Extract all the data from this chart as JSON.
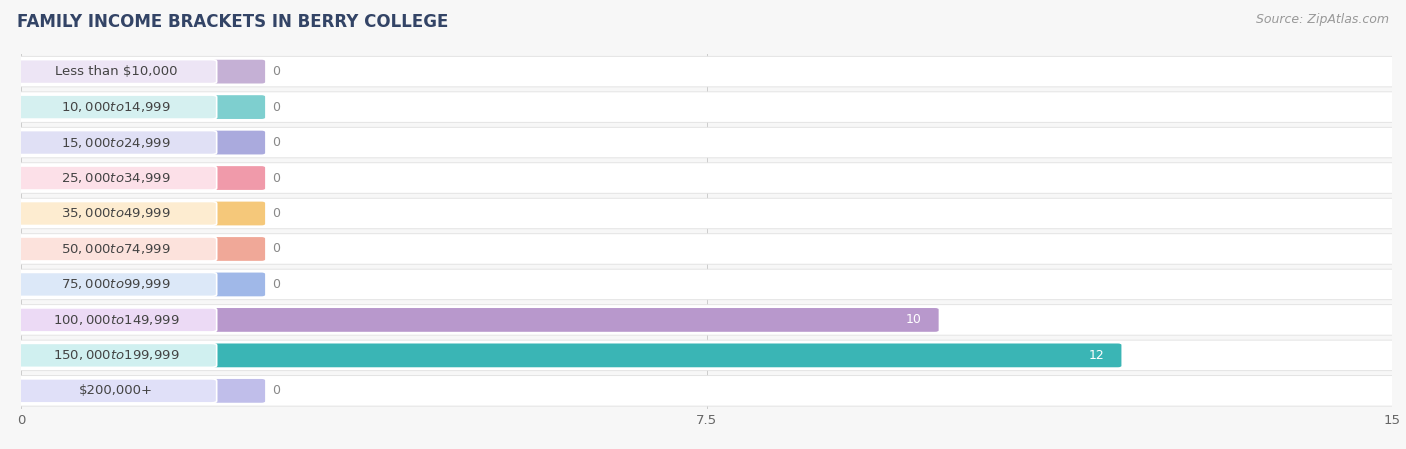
{
  "title": "FAMILY INCOME BRACKETS IN BERRY COLLEGE",
  "source": "Source: ZipAtlas.com",
  "categories": [
    "Less than $10,000",
    "$10,000 to $14,999",
    "$15,000 to $24,999",
    "$25,000 to $34,999",
    "$35,000 to $49,999",
    "$50,000 to $74,999",
    "$75,000 to $99,999",
    "$100,000 to $149,999",
    "$150,000 to $199,999",
    "$200,000+"
  ],
  "values": [
    0,
    0,
    0,
    0,
    0,
    0,
    0,
    10,
    12,
    0
  ],
  "bar_colors": [
    "#c5b0d5",
    "#7ecfcf",
    "#aaaadd",
    "#f09aaa",
    "#f5c87a",
    "#f0a898",
    "#a0b8e8",
    "#b898cc",
    "#3ab5b5",
    "#c0beea"
  ],
  "label_bg_colors": [
    "#ede5f5",
    "#d5f0f0",
    "#e0e0f5",
    "#fce0e8",
    "#fdecd0",
    "#fce2dc",
    "#dce8f8",
    "#ecdaf5",
    "#d0f0f0",
    "#e0e0f8"
  ],
  "row_bg_color": "#ffffff",
  "row_border_color": "#e0e0e0",
  "grid_color": "#cccccc",
  "xlim": [
    0,
    15
  ],
  "xticks": [
    0,
    7.5,
    15
  ],
  "bg_color": "#f7f7f7",
  "title_color": "#334466",
  "title_fontsize": 12,
  "source_fontsize": 9,
  "label_fontsize": 9.5,
  "value_fontsize": 9,
  "label_text_color": "#444444",
  "value_text_color_zero": "#888888",
  "value_text_color_nonzero": "#ffffff"
}
